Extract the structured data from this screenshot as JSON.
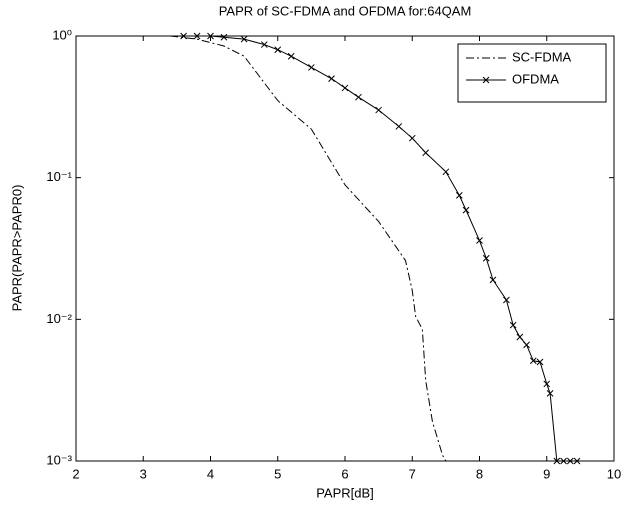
{
  "chart_data": {
    "type": "line",
    "title": "PAPR of SC-FDMA and OFDMA for:64QAM",
    "xlabel": "PAPR[dB]",
    "ylabel": "PAPR(PAPR>PAPR0)",
    "xlim": [
      2,
      10
    ],
    "xticks": [
      2,
      3,
      4,
      5,
      6,
      7,
      8,
      9,
      10
    ],
    "ylim": [
      0.001,
      1
    ],
    "ylog": true,
    "yticks": [
      {
        "value": 0.001,
        "label": "10⁻³"
      },
      {
        "value": 0.01,
        "label": "10⁻²"
      },
      {
        "value": 0.1,
        "label": "10⁻¹"
      },
      {
        "value": 1,
        "label": "10⁰"
      }
    ],
    "legend": "upper right",
    "series": [
      {
        "name": "SC-FDMA",
        "color": "#000000",
        "linestyle": "dashdot",
        "marker": "none",
        "x": [
          3.4,
          3.8,
          4.2,
          4.5,
          5.0,
          5.5,
          6.0,
          6.5,
          6.9,
          7.0,
          7.05,
          7.15,
          7.2,
          7.3,
          7.45,
          7.5,
          7.7
        ],
        "values": [
          1,
          0.95,
          0.85,
          0.72,
          0.35,
          0.22,
          0.089,
          0.049,
          0.026,
          0.016,
          0.0105,
          0.0085,
          0.0037,
          0.0019,
          0.0011,
          0.001,
          0.001
        ]
      },
      {
        "name": "OFDMA",
        "color": "#000000",
        "linestyle": "solid",
        "marker": "x",
        "x": [
          3.6,
          3.8,
          4.0,
          4.2,
          4.5,
          4.8,
          5.0,
          5.2,
          5.5,
          5.8,
          6.0,
          6.2,
          6.5,
          6.8,
          7.0,
          7.2,
          7.5,
          7.7,
          7.8,
          8.0,
          8.1,
          8.2,
          8.4,
          8.5,
          8.6,
          8.7,
          8.8,
          8.9,
          9.0,
          9.05,
          9.15,
          9.25,
          9.35,
          9.45
        ],
        "values": [
          1,
          1,
          1,
          0.98,
          0.95,
          0.87,
          0.8,
          0.72,
          0.6,
          0.5,
          0.43,
          0.37,
          0.3,
          0.23,
          0.19,
          0.15,
          0.11,
          0.075,
          0.059,
          0.036,
          0.027,
          0.019,
          0.0137,
          0.0091,
          0.0075,
          0.0066,
          0.0051,
          0.005,
          0.0035,
          0.003,
          0.001,
          0.001,
          0.001,
          0.001
        ]
      }
    ]
  }
}
